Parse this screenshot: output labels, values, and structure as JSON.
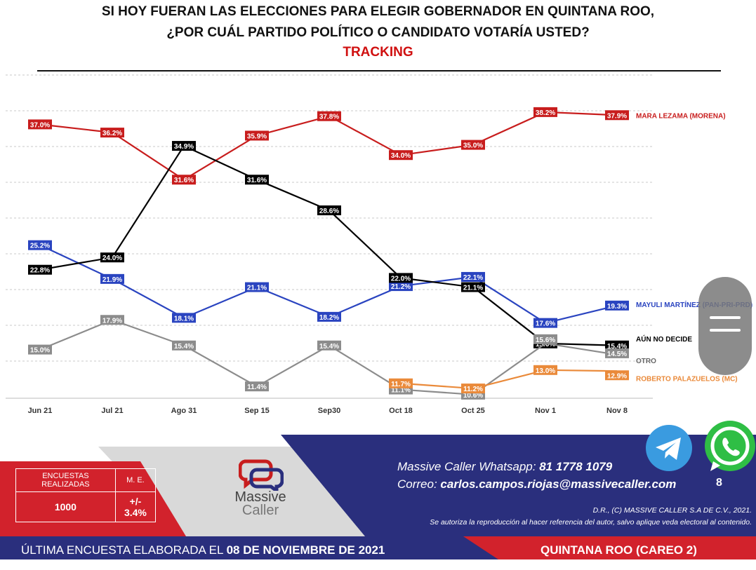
{
  "header": {
    "line1": "SI HOY FUERAN LAS ELECCIONES PARA ELEGIR GOBERNADOR EN QUINTANA ROO,",
    "line2": "¿POR CUÁL PARTIDO POLÍTICO O CANDIDATO VOTARÍA USTED?",
    "line3": "TRACKING"
  },
  "chart_data": {
    "type": "line",
    "categories": [
      "Jun 21",
      "Jul 21",
      "Ago 31",
      "Sep 15",
      "Sep30",
      "Oct 18",
      "Oct 25",
      "Nov 1",
      "Nov 8"
    ],
    "ylim": [
      0,
      45
    ],
    "grid": true,
    "series": [
      {
        "name": "MARA LEZAMA (MORENA)",
        "color": "#c81d1d",
        "label_color": "#c81d1d",
        "values": [
          37.0,
          36.2,
          31.6,
          35.9,
          37.8,
          34.0,
          35.0,
          38.2,
          37.9
        ]
      },
      {
        "name": "MAYULI MARTÍNEZ (PAN-PRI-PRD)",
        "color": "#2a44c0",
        "label_color": "#2a44c0",
        "values": [
          25.2,
          21.9,
          18.1,
          21.1,
          18.2,
          21.2,
          22.1,
          17.6,
          19.3
        ]
      },
      {
        "name": "AÚN NO DECIDE",
        "color": "#000000",
        "label_color": "#000000",
        "values": [
          22.8,
          24.0,
          34.9,
          31.6,
          28.6,
          22.0,
          21.1,
          15.6,
          15.4
        ]
      },
      {
        "name": "OTRO",
        "color": "#8c8c8c",
        "label_color": "#666666",
        "values": [
          15.0,
          17.9,
          15.4,
          11.4,
          15.4,
          11.1,
          10.6,
          15.6,
          14.5
        ]
      },
      {
        "name": "ROBERTO PALAZUELOS (MC)",
        "color": "#ea8a3a",
        "label_color": "#ea8a3a",
        "values": [
          null,
          null,
          null,
          null,
          null,
          11.7,
          11.2,
          13.0,
          12.9
        ]
      }
    ]
  },
  "footer": {
    "table_h1": "ENCUESTAS REALIZADAS",
    "table_h2": "M. E.",
    "table_v1": "1000",
    "table_v2": "+/- 3.4%",
    "logo_line1": "Massive",
    "logo_line2": "Caller",
    "whatsapp_prefix": "Massive Caller Whatsapp:",
    "whatsapp_number": "81 1778 1079",
    "email_prefix": "Correo:",
    "email": "carlos.campos.riojas@massivecaller.com",
    "page_number": "8",
    "legal1": "D.R., (C) MASSIVE CALLER S.A DE C.V., 2021.",
    "legal2": "Se autoriza la reproducción al hacer referencia del autor, salvo aplique veda electoral al contenido.",
    "last_survey_prefix": "ÚLTIMA ENCUESTA ELABORADA EL",
    "last_survey_date": "08 DE NOVIEMBRE DE 2021",
    "region": "QUINTANA ROO (CAREO 2)",
    "colors": {
      "navy": "#2a2f7d",
      "red": "#d2222c",
      "gray": "#8a8a8a"
    }
  }
}
